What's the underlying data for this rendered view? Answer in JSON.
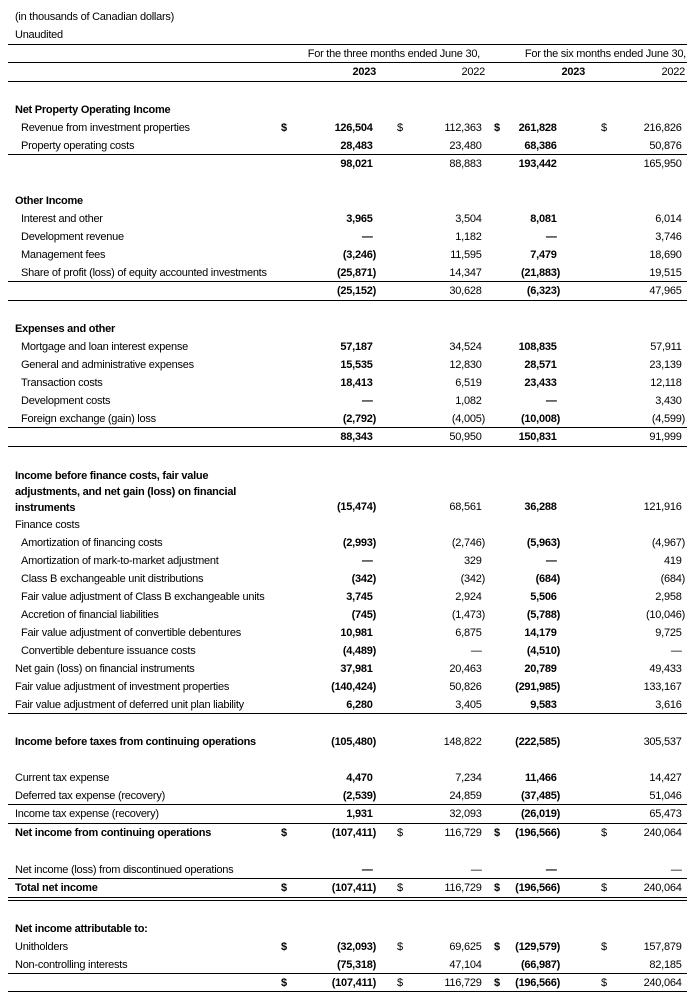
{
  "header": {
    "units_note": "(in thousands of Canadian dollars)",
    "audit_status": "Unaudited",
    "period_three_months": "For the three months ended June 30,",
    "period_six_months": "For the six months ended June 30,",
    "years": [
      "2023",
      "2022",
      "2023",
      "2022"
    ]
  },
  "currency_symbol": "$",
  "rows": [
    {
      "label": "Net Property Operating Income",
      "bold": true
    },
    {
      "label": "Revenue from investment properties",
      "indent": true,
      "dollar": true,
      "values": [
        "126,504",
        "112,363",
        "261,828",
        "216,826"
      ]
    },
    {
      "label": "Property operating costs",
      "indent": true,
      "values": [
        "28,483",
        "23,480",
        "68,386",
        "50,876"
      ]
    },
    {
      "label": "",
      "values": [
        "98,021",
        "88,883",
        "193,442",
        "165,950"
      ]
    },
    {
      "label": "Other Income",
      "bold": true
    },
    {
      "label": "Interest and other",
      "indent": true,
      "values": [
        "3,965",
        "3,504",
        "8,081",
        "6,014"
      ]
    },
    {
      "label": "Development revenue",
      "indent": true,
      "values": [
        "—",
        "1,182",
        "—",
        "3,746"
      ]
    },
    {
      "label": "Management fees",
      "indent": true,
      "values": [
        "(3,246)",
        "11,595",
        "7,479",
        "18,690"
      ]
    },
    {
      "label": "Share of profit (loss) of equity accounted investments",
      "indent": true,
      "values": [
        "(25,871)",
        "14,347",
        "(21,883)",
        "19,515"
      ]
    },
    {
      "label": "",
      "values": [
        "(25,152)",
        "30,628",
        "(6,323)",
        "47,965"
      ]
    },
    {
      "label": "Expenses and other",
      "bold": true
    },
    {
      "label": "Mortgage and loan interest expense",
      "indent": true,
      "values": [
        "57,187",
        "34,524",
        "108,835",
        "57,911"
      ]
    },
    {
      "label": "General and administrative expenses",
      "indent": true,
      "values": [
        "15,535",
        "12,830",
        "28,571",
        "23,139"
      ]
    },
    {
      "label": "Transaction costs",
      "indent": true,
      "values": [
        "18,413",
        "6,519",
        "23,433",
        "12,118"
      ]
    },
    {
      "label": "Development costs",
      "indent": true,
      "values": [
        "—",
        "1,082",
        "—",
        "3,430"
      ]
    },
    {
      "label": "Foreign exchange (gain) loss",
      "indent": true,
      "values": [
        "(2,792)",
        "(4,005)",
        "(10,008)",
        "(4,599)"
      ]
    },
    {
      "label": "",
      "values": [
        "88,343",
        "50,950",
        "150,831",
        "91,999"
      ]
    },
    {
      "label": "Income before finance costs, fair value adjustments, and net gain (loss) on financial instruments",
      "bold": true,
      "values": [
        "(15,474)",
        "68,561",
        "36,288",
        "121,916"
      ]
    },
    {
      "label": "Finance costs"
    },
    {
      "label": "Amortization of financing costs",
      "indent": true,
      "values": [
        "(2,993)",
        "(2,746)",
        "(5,963)",
        "(4,967)"
      ]
    },
    {
      "label": "Amortization of mark-to-market adjustment",
      "indent": true,
      "values": [
        "—",
        "329",
        "—",
        "419"
      ]
    },
    {
      "label": "Class B exchangeable unit distributions",
      "indent": true,
      "values": [
        "(342)",
        "(342)",
        "(684)",
        "(684)"
      ]
    },
    {
      "label": "Fair value adjustment of Class B exchangeable units",
      "indent": true,
      "values": [
        "3,745",
        "2,924",
        "5,506",
        "2,958"
      ]
    },
    {
      "label": "Accretion of financial liabilities",
      "indent": true,
      "values": [
        "(745)",
        "(1,473)",
        "(5,788)",
        "(10,046)"
      ]
    },
    {
      "label": "Fair value adjustment of convertible debentures",
      "indent": true,
      "values": [
        "10,981",
        "6,875",
        "14,179",
        "9,725"
      ]
    },
    {
      "label": "Convertible debenture issuance costs",
      "indent": true,
      "values": [
        "(4,489)",
        "—",
        "(4,510)",
        "—"
      ]
    },
    {
      "label": "Net gain (loss) on financial instruments",
      "values": [
        "37,981",
        "20,463",
        "20,789",
        "49,433"
      ]
    },
    {
      "label": "Fair value adjustment of investment properties",
      "values": [
        "(140,424)",
        "50,826",
        "(291,985)",
        "133,167"
      ]
    },
    {
      "label": "Fair value adjustment of deferred unit plan liability",
      "values": [
        "6,280",
        "3,405",
        "9,583",
        "3,616"
      ]
    },
    {
      "label": "Income before taxes from continuing operations",
      "bold": true,
      "values": [
        "(105,480)",
        "148,822",
        "(222,585)",
        "305,537"
      ]
    },
    {
      "label": "Current tax expense",
      "values": [
        "4,470",
        "7,234",
        "11,466",
        "14,427"
      ]
    },
    {
      "label": "Deferred tax expense (recovery)",
      "values": [
        "(2,539)",
        "24,859",
        "(37,485)",
        "51,046"
      ]
    },
    {
      "label": "Income tax expense (recovery)",
      "values": [
        "1,931",
        "32,093",
        "(26,019)",
        "65,473"
      ]
    },
    {
      "label": "Net income from continuing operations",
      "bold": true,
      "dollar": true,
      "values": [
        "(107,411)",
        "116,729",
        "(196,566)",
        "240,064"
      ]
    },
    {
      "label": "Net income (loss) from discontinued operations",
      "values": [
        "—",
        "—",
        "—",
        "—"
      ]
    },
    {
      "label": "Total net income",
      "bold": true,
      "dollar": true,
      "values": [
        "(107,411)",
        "116,729",
        "(196,566)",
        "240,064"
      ]
    },
    {
      "label": "Net income attributable to:",
      "bold": true
    },
    {
      "label": "Unitholders",
      "dollar": true,
      "values": [
        "(32,093)",
        "69,625",
        "(129,579)",
        "157,879"
      ]
    },
    {
      "label": "Non-controlling interests",
      "values": [
        "(75,318)",
        "47,104",
        "(66,987)",
        "82,185"
      ]
    },
    {
      "label": "",
      "dollar": true,
      "values": [
        "(107,411)",
        "116,729",
        "(196,566)",
        "240,064"
      ]
    }
  ]
}
